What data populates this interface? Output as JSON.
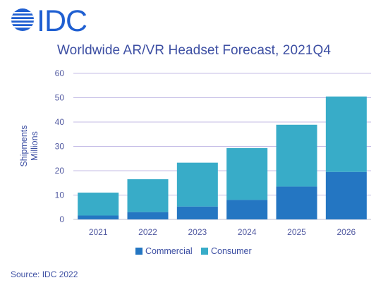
{
  "logo": {
    "text": "IDC",
    "color": "#1f5fd1"
  },
  "chart_data": {
    "type": "bar",
    "stacked": true,
    "title": "Worldwide AR/VR Headset Forecast, 2021Q4",
    "ylabel_lines": [
      "Shipments",
      "Millions"
    ],
    "xlabel": "",
    "categories": [
      "2021",
      "2022",
      "2023",
      "2024",
      "2025",
      "2026"
    ],
    "series": [
      {
        "name": "Commercial",
        "color": "#2476c2",
        "values": [
          1.6,
          3.0,
          5.3,
          8.0,
          13.5,
          19.5
        ]
      },
      {
        "name": "Consumer",
        "color": "#38acc8",
        "values": [
          9.4,
          13.5,
          18.0,
          21.3,
          25.4,
          31.0
        ]
      }
    ],
    "ylim": [
      0,
      60
    ],
    "yticks": [
      "0",
      "10",
      "20",
      "30",
      "40",
      "50",
      "60"
    ],
    "grid": true,
    "gridline_color": "#c4bce6",
    "legend_position": "bottom"
  },
  "source": "Source: IDC 2022"
}
